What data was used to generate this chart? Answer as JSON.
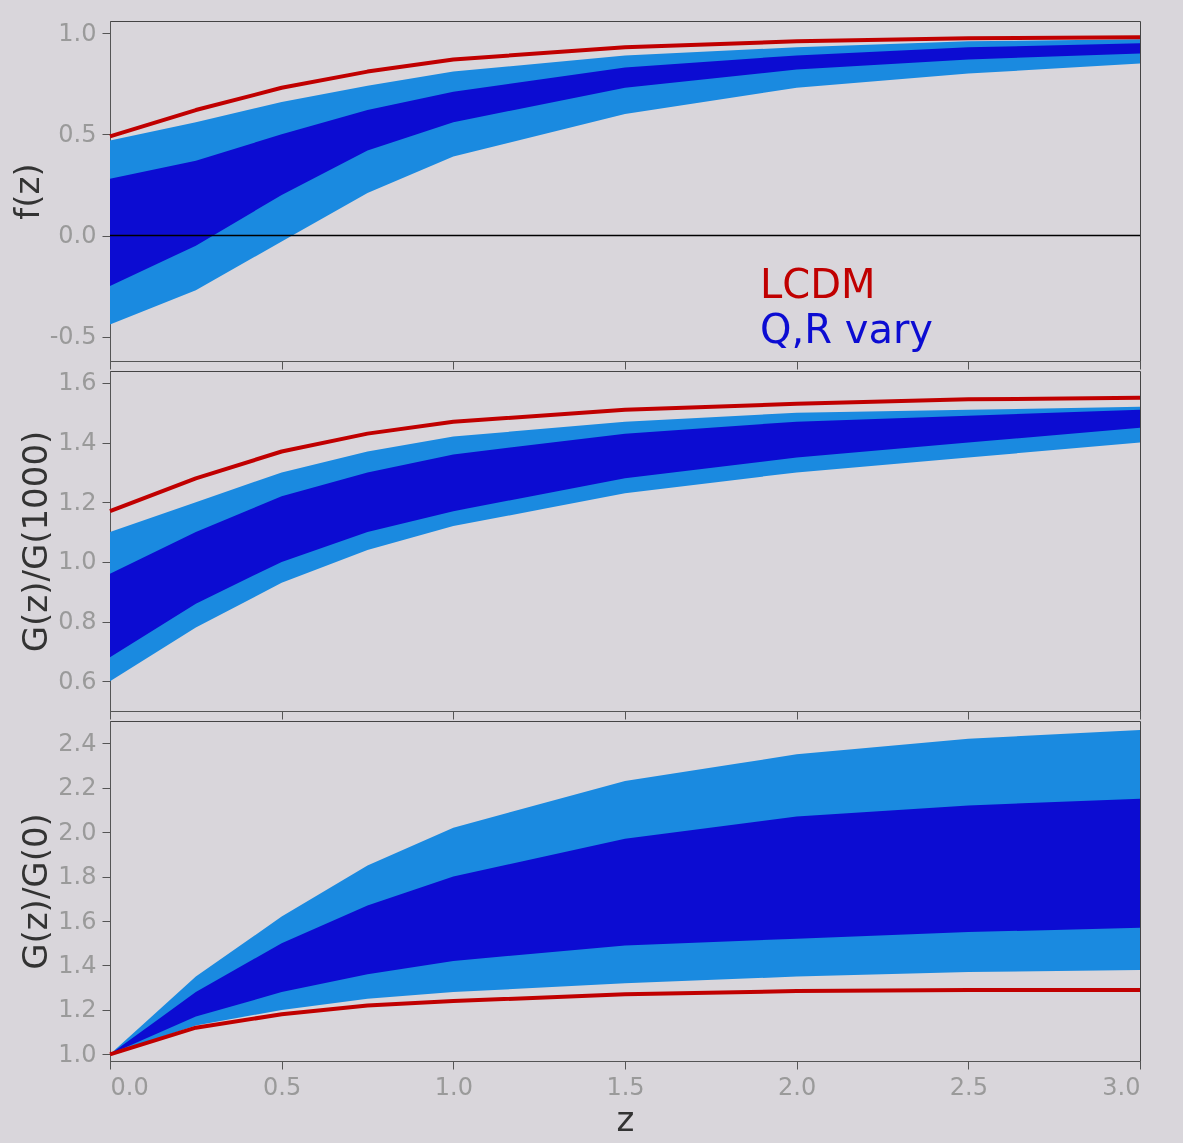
{
  "chart_data": [
    {
      "type": "area",
      "ylabel": "f(z)",
      "x": [
        0,
        0.25,
        0.5,
        0.75,
        1.0,
        1.5,
        2.0,
        2.5,
        3.0
      ],
      "xlim": [
        0,
        3
      ],
      "ylim": [
        -0.62,
        1.06
      ],
      "xticks": [
        {
          "value": 0,
          "label": null
        },
        {
          "value": 0.5,
          "label": null
        },
        {
          "value": 1,
          "label": null
        },
        {
          "value": 1.5,
          "label": null
        },
        {
          "value": 2,
          "label": null
        },
        {
          "value": 2.5,
          "label": null
        },
        {
          "value": 3,
          "label": null
        }
      ],
      "yticks": [
        -0.5,
        {
          "value": 0,
          "label": "0.0"
        },
        0.5,
        {
          "value": 1,
          "label": "1.0"
        }
      ],
      "tick_labels": "y",
      "grid": false,
      "legend": "bottom right",
      "ref_lines": [
        {
          "axis": "y",
          "value": 0,
          "color": "#000000"
        }
      ],
      "series": [
        {
          "color": "#1a8ae0",
          "values": [
            null,
            null,
            null,
            null,
            null,
            null,
            null,
            null,
            null
          ],
          "lower": [
            -0.44,
            -0.27,
            -0.03,
            0.21,
            0.39,
            0.6,
            0.73,
            0.8,
            0.85
          ],
          "upper": [
            0.47,
            0.56,
            0.66,
            0.74,
            0.81,
            0.89,
            0.93,
            0.96,
            0.97
          ]
        },
        {
          "name": "Q,R vary",
          "color": "#0c0cd2",
          "values": [
            null,
            null,
            null,
            null,
            null,
            null,
            null,
            null,
            null
          ],
          "lower": [
            -0.25,
            -0.05,
            0.2,
            0.42,
            0.56,
            0.73,
            0.82,
            0.87,
            0.9
          ],
          "upper": [
            0.28,
            0.37,
            0.5,
            0.62,
            0.71,
            0.83,
            0.89,
            0.93,
            0.95
          ]
        },
        {
          "type": "line",
          "name": "LCDM",
          "color": "#c00000",
          "values": [
            0.49,
            0.62,
            0.73,
            0.81,
            0.87,
            0.93,
            0.96,
            0.975,
            0.98
          ]
        }
      ]
    },
    {
      "type": "area",
      "ylabel": "G(z)/G(1000)",
      "x": [
        0,
        0.25,
        0.5,
        0.75,
        1.0,
        1.5,
        2.0,
        2.5,
        3.0
      ],
      "xlim": [
        0,
        3
      ],
      "ylim": [
        0.5,
        1.64
      ],
      "xticks": [
        {
          "value": 0,
          "label": null
        },
        {
          "value": 0.5,
          "label": null
        },
        {
          "value": 1,
          "label": null
        },
        {
          "value": 1.5,
          "label": null
        },
        {
          "value": 2,
          "label": null
        },
        {
          "value": 2.5,
          "label": null
        },
        {
          "value": 3,
          "label": null
        }
      ],
      "yticks": [
        0.6,
        0.8,
        {
          "value": 1,
          "label": "1.0"
        },
        1.2,
        1.4,
        1.6
      ],
      "tick_labels": "y",
      "grid": false,
      "series": [
        {
          "color": "#1a8ae0",
          "values": [
            null,
            null,
            null,
            null,
            null,
            null,
            null,
            null,
            null
          ],
          "lower": [
            0.6,
            0.78,
            0.93,
            1.04,
            1.12,
            1.23,
            1.3,
            1.35,
            1.4
          ],
          "upper": [
            1.1,
            1.2,
            1.3,
            1.37,
            1.42,
            1.47,
            1.5,
            1.51,
            1.52
          ]
        },
        {
          "color": "#0c0cd2",
          "values": [
            null,
            null,
            null,
            null,
            null,
            null,
            null,
            null,
            null
          ],
          "lower": [
            0.68,
            0.86,
            1.0,
            1.1,
            1.17,
            1.28,
            1.35,
            1.4,
            1.45
          ],
          "upper": [
            0.96,
            1.1,
            1.22,
            1.3,
            1.36,
            1.43,
            1.47,
            1.49,
            1.51
          ]
        },
        {
          "type": "line",
          "color": "#c00000",
          "values": [
            1.17,
            1.28,
            1.37,
            1.43,
            1.47,
            1.51,
            1.53,
            1.545,
            1.55
          ]
        }
      ]
    },
    {
      "type": "area",
      "ylabel": "G(z)/G(0)",
      "xlabel": "z",
      "x": [
        0,
        0.25,
        0.5,
        0.75,
        1.0,
        1.5,
        2.0,
        2.5,
        3.0
      ],
      "xlim": [
        0,
        3
      ],
      "ylim": [
        0.97,
        2.5
      ],
      "xticks": [
        {
          "value": 0,
          "label": "0.0"
        },
        0.5,
        {
          "value": 1,
          "label": "1.0"
        },
        1.5,
        {
          "value": 2,
          "label": "2.0"
        },
        2.5,
        {
          "value": 3,
          "label": "3.0"
        }
      ],
      "yticks": [
        {
          "value": 1,
          "label": "1.0"
        },
        1.2,
        1.4,
        1.6,
        1.8,
        {
          "value": 2,
          "label": "2.0"
        },
        2.2,
        2.4
      ],
      "grid": false,
      "series": [
        {
          "color": "#1a8ae0",
          "values": [
            null,
            null,
            null,
            null,
            null,
            null,
            null,
            null,
            null
          ],
          "lower": [
            1.0,
            1.13,
            1.2,
            1.25,
            1.28,
            1.32,
            1.35,
            1.37,
            1.38
          ],
          "upper": [
            1.0,
            1.35,
            1.62,
            1.85,
            2.02,
            2.23,
            2.35,
            2.42,
            2.46
          ]
        },
        {
          "color": "#0c0cd2",
          "values": [
            null,
            null,
            null,
            null,
            null,
            null,
            null,
            null,
            null
          ],
          "lower": [
            1.0,
            1.17,
            1.28,
            1.36,
            1.42,
            1.49,
            1.52,
            1.55,
            1.57
          ],
          "upper": [
            1.0,
            1.28,
            1.5,
            1.67,
            1.8,
            1.97,
            2.07,
            2.12,
            2.15
          ]
        },
        {
          "type": "line",
          "color": "#c00000",
          "values": [
            1.0,
            1.12,
            1.18,
            1.22,
            1.24,
            1.27,
            1.285,
            1.29,
            1.29
          ]
        }
      ]
    }
  ]
}
